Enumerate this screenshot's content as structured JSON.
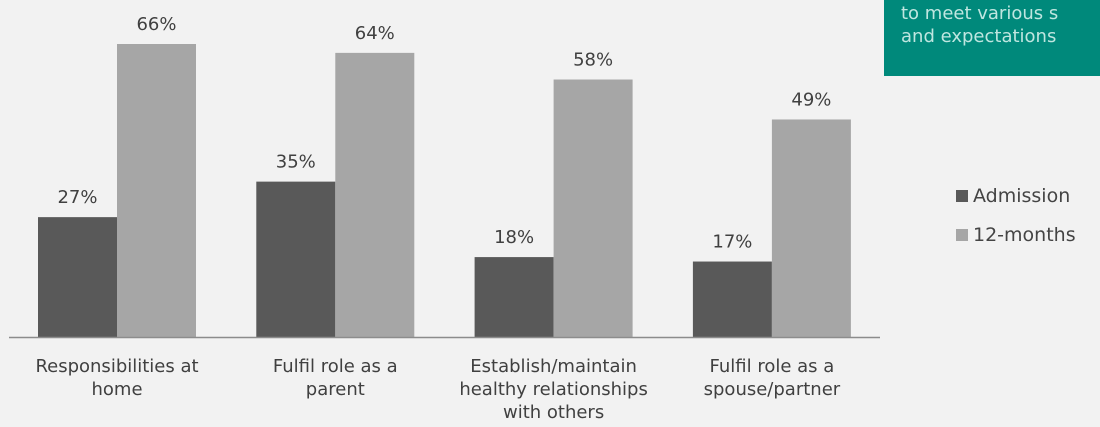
{
  "callout": {
    "lines": [
      "to meet various s",
      "and expectations"
    ]
  },
  "chart_data": {
    "type": "bar",
    "categories": [
      [
        "Responsibilities at",
        "home"
      ],
      [
        "Fulfil role as a",
        "parent"
      ],
      [
        "Establish/maintain",
        "healthy relationships",
        "with others"
      ],
      [
        "Fulfil role as a",
        "spouse/partner"
      ]
    ],
    "series": [
      {
        "name": "Admission",
        "values": [
          27,
          35,
          18,
          17
        ],
        "labels": [
          "27%",
          "35%",
          "18%",
          "17%"
        ],
        "color": "#595959"
      },
      {
        "name": "12-months",
        "values": [
          66,
          64,
          58,
          49
        ],
        "labels": [
          "66%",
          "64%",
          "58%",
          "49%"
        ],
        "color": "#a6a6a6"
      }
    ],
    "ylim": [
      0,
      70
    ],
    "grid": false,
    "legend": "right"
  }
}
